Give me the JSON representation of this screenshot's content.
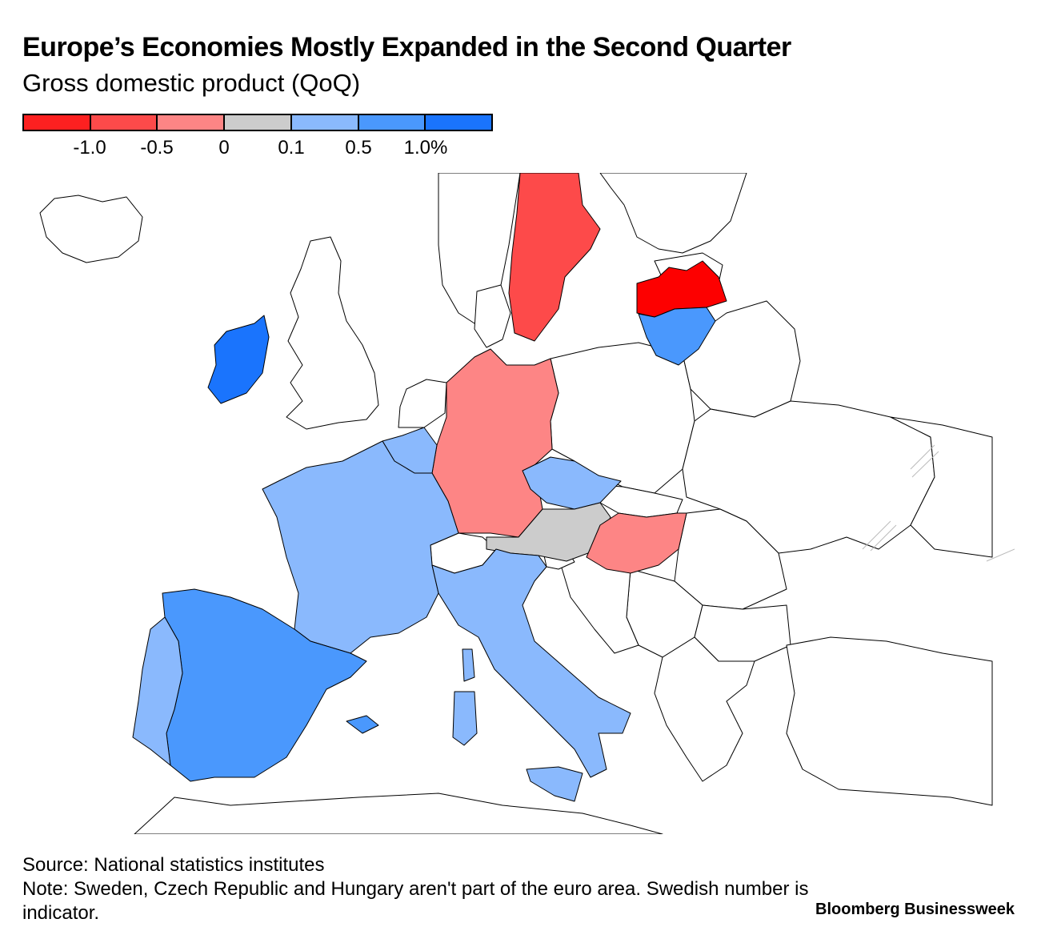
{
  "header": {
    "title": "Europe’s Economies Mostly Expanded in the Second Quarter",
    "subtitle": "Gross domestic product (QoQ)"
  },
  "legend": {
    "colors": [
      "#fd2020",
      "#fd4a4a",
      "#fd8585",
      "#cccccc",
      "#8ab9fd",
      "#4a98fd",
      "#1a74fd"
    ],
    "ticks": [
      "-1.0",
      "-0.5",
      "0",
      "0.1",
      "0.5",
      "1.0%"
    ]
  },
  "map": {
    "no_data_color": "#ffffff",
    "countries": [
      {
        "name": "Sweden",
        "bucket": "-1.0 to -0.5",
        "color": "#fd4a4a"
      },
      {
        "name": "Latvia",
        "bucket": "below -1.0",
        "color": "#fd0000"
      },
      {
        "name": "Lithuania",
        "bucket": "0.5 to 1.0",
        "color": "#4a98fd"
      },
      {
        "name": "Ireland",
        "bucket": "above 1.0",
        "color": "#1a74fd"
      },
      {
        "name": "Germany",
        "bucket": "-0.5 to 0",
        "color": "#fd8585"
      },
      {
        "name": "Belgium",
        "bucket": "0.1 to 0.5",
        "color": "#8ab9fd"
      },
      {
        "name": "France",
        "bucket": "0.1 to 0.5",
        "color": "#8ab9fd"
      },
      {
        "name": "Czech Republic",
        "bucket": "0.1 to 0.5",
        "color": "#8ab9fd"
      },
      {
        "name": "Austria",
        "bucket": "0 to 0.1",
        "color": "#cccccc"
      },
      {
        "name": "Hungary",
        "bucket": "-0.5 to 0",
        "color": "#fd8585"
      },
      {
        "name": "Italy",
        "bucket": "0.1 to 0.5",
        "color": "#8ab9fd"
      },
      {
        "name": "Spain",
        "bucket": "0.5 to 1.0",
        "color": "#4a98fd"
      },
      {
        "name": "Portugal",
        "bucket": "0.1 to 0.5",
        "color": "#8ab9fd"
      }
    ]
  },
  "footer": {
    "source": "Source: National statistics institutes",
    "note": "Note: Sweden, Czech Republic and Hungary aren't part of the euro area. Swedish number is indicator.",
    "brand": "Bloomberg Businessweek"
  }
}
